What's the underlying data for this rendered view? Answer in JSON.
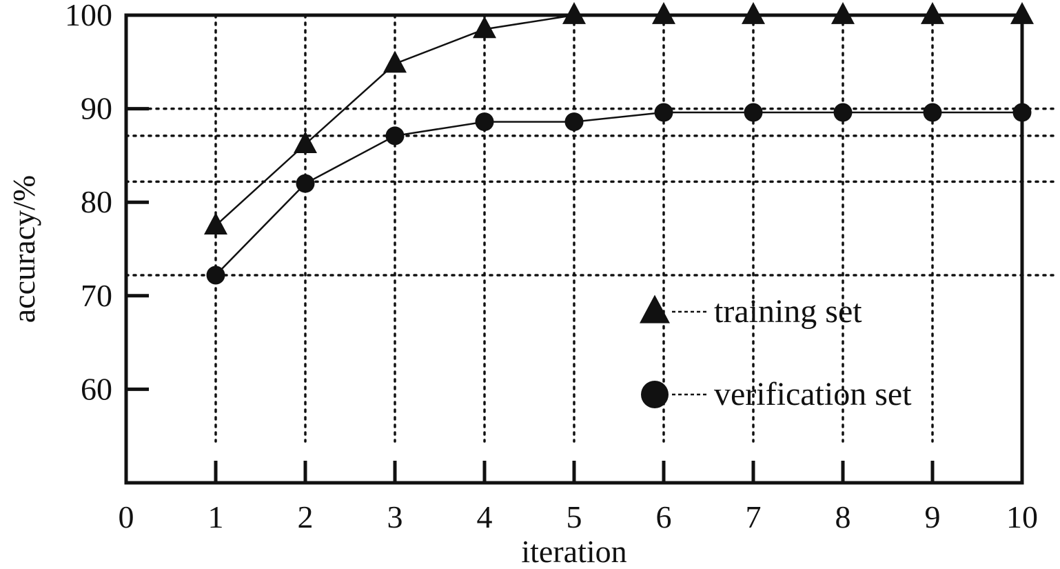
{
  "chart_data": {
    "type": "line",
    "xlabel": "iteration",
    "ylabel": "accuracy/%",
    "xlim": [
      0,
      10
    ],
    "ylim": [
      50,
      100
    ],
    "x_ticks": [
      0,
      1,
      2,
      3,
      4,
      5,
      6,
      7,
      8,
      9,
      10
    ],
    "y_ticks": [
      60,
      70,
      80,
      90,
      100
    ],
    "grid": true,
    "legend_position": "bottom-right",
    "series": [
      {
        "name": "training set",
        "marker": "triangle",
        "x": [
          1,
          2,
          3,
          4,
          5,
          6,
          7,
          8,
          9,
          10
        ],
        "values": [
          77.5,
          86.2,
          94.8,
          98.5,
          100,
          100,
          100,
          100,
          100,
          100
        ]
      },
      {
        "name": "verification set",
        "marker": "circle",
        "x": [
          1,
          2,
          3,
          4,
          5,
          6,
          7,
          8,
          9,
          10
        ],
        "values": [
          72.2,
          82.0,
          87.1,
          88.6,
          88.6,
          89.6,
          89.6,
          89.6,
          89.6,
          89.6
        ]
      }
    ],
    "reference_lines_y": [
      90,
      87.1,
      82.2,
      72.2
    ]
  },
  "colors": {
    "ink": "#111111",
    "background": "#ffffff"
  }
}
